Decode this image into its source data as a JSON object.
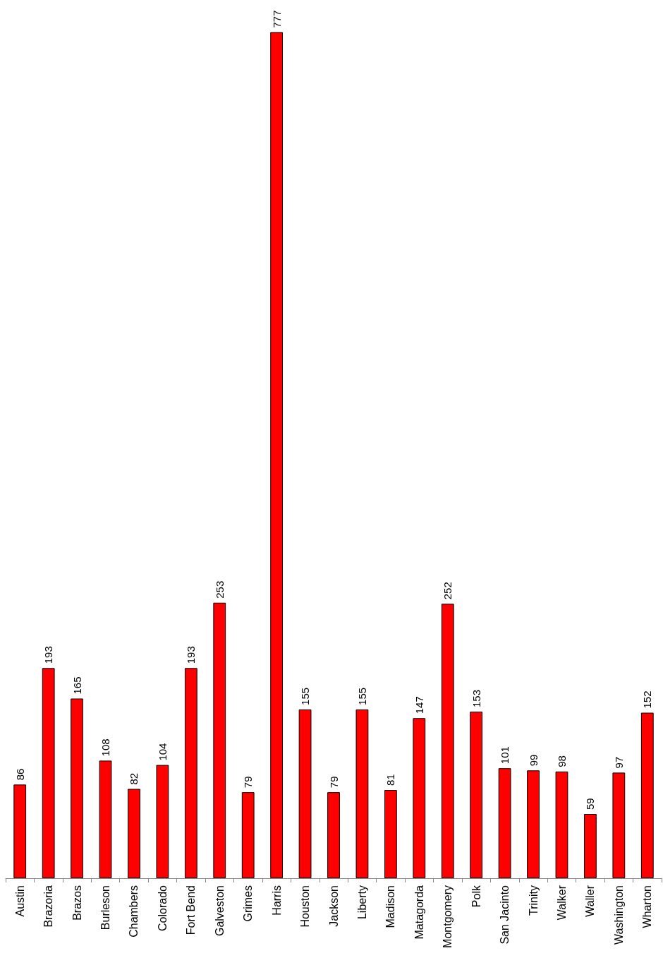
{
  "chart_data": {
    "type": "bar",
    "categories": [
      "Austin",
      "Brazoria",
      "Brazos",
      "Burleson",
      "Chambers",
      "Colorado",
      "Fort Bend",
      "Galveston",
      "Grimes",
      "Harris",
      "Houston",
      "Jackson",
      "Liberty",
      "Madison",
      "Matagorda",
      "Montgomery",
      "Polk",
      "San Jacinto",
      "Trinity",
      "Walker",
      "Waller",
      "Washington",
      "Wharton"
    ],
    "values": [
      86,
      193,
      165,
      108,
      82,
      104,
      193,
      253,
      79,
      777,
      155,
      79,
      155,
      81,
      147,
      252,
      153,
      101,
      99,
      98,
      59,
      97,
      152
    ],
    "color": "#ff0000",
    "data_labels": true
  }
}
